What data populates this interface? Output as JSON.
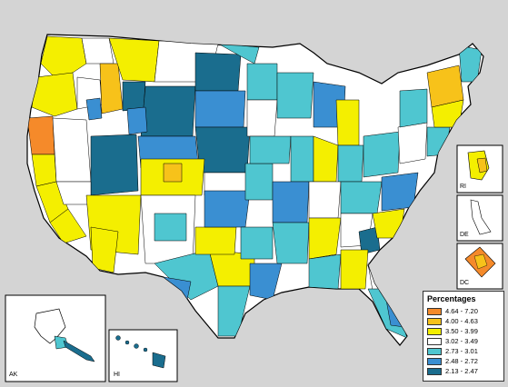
{
  "legend": {
    "title": "Percentages",
    "items": [
      {
        "label": "4.64 - 7.20",
        "color": "#f58a2a"
      },
      {
        "label": "4.00 - 4.63",
        "color": "#f7c21a"
      },
      {
        "label": "3.50 - 3.99",
        "color": "#f4ef00"
      },
      {
        "label": "3.02 - 3.49",
        "color": "#ffffff"
      },
      {
        "label": "2.73 - 3.01",
        "color": "#4fc6d0"
      },
      {
        "label": "2.48 - 2.72",
        "color": "#3a8fd2"
      },
      {
        "label": "2.13 - 2.47",
        "color": "#1a6d8e"
      }
    ]
  },
  "insets": {
    "ak": "AK",
    "hi": "HI",
    "ri": "RI",
    "de": "DE",
    "dc": "DC"
  }
}
